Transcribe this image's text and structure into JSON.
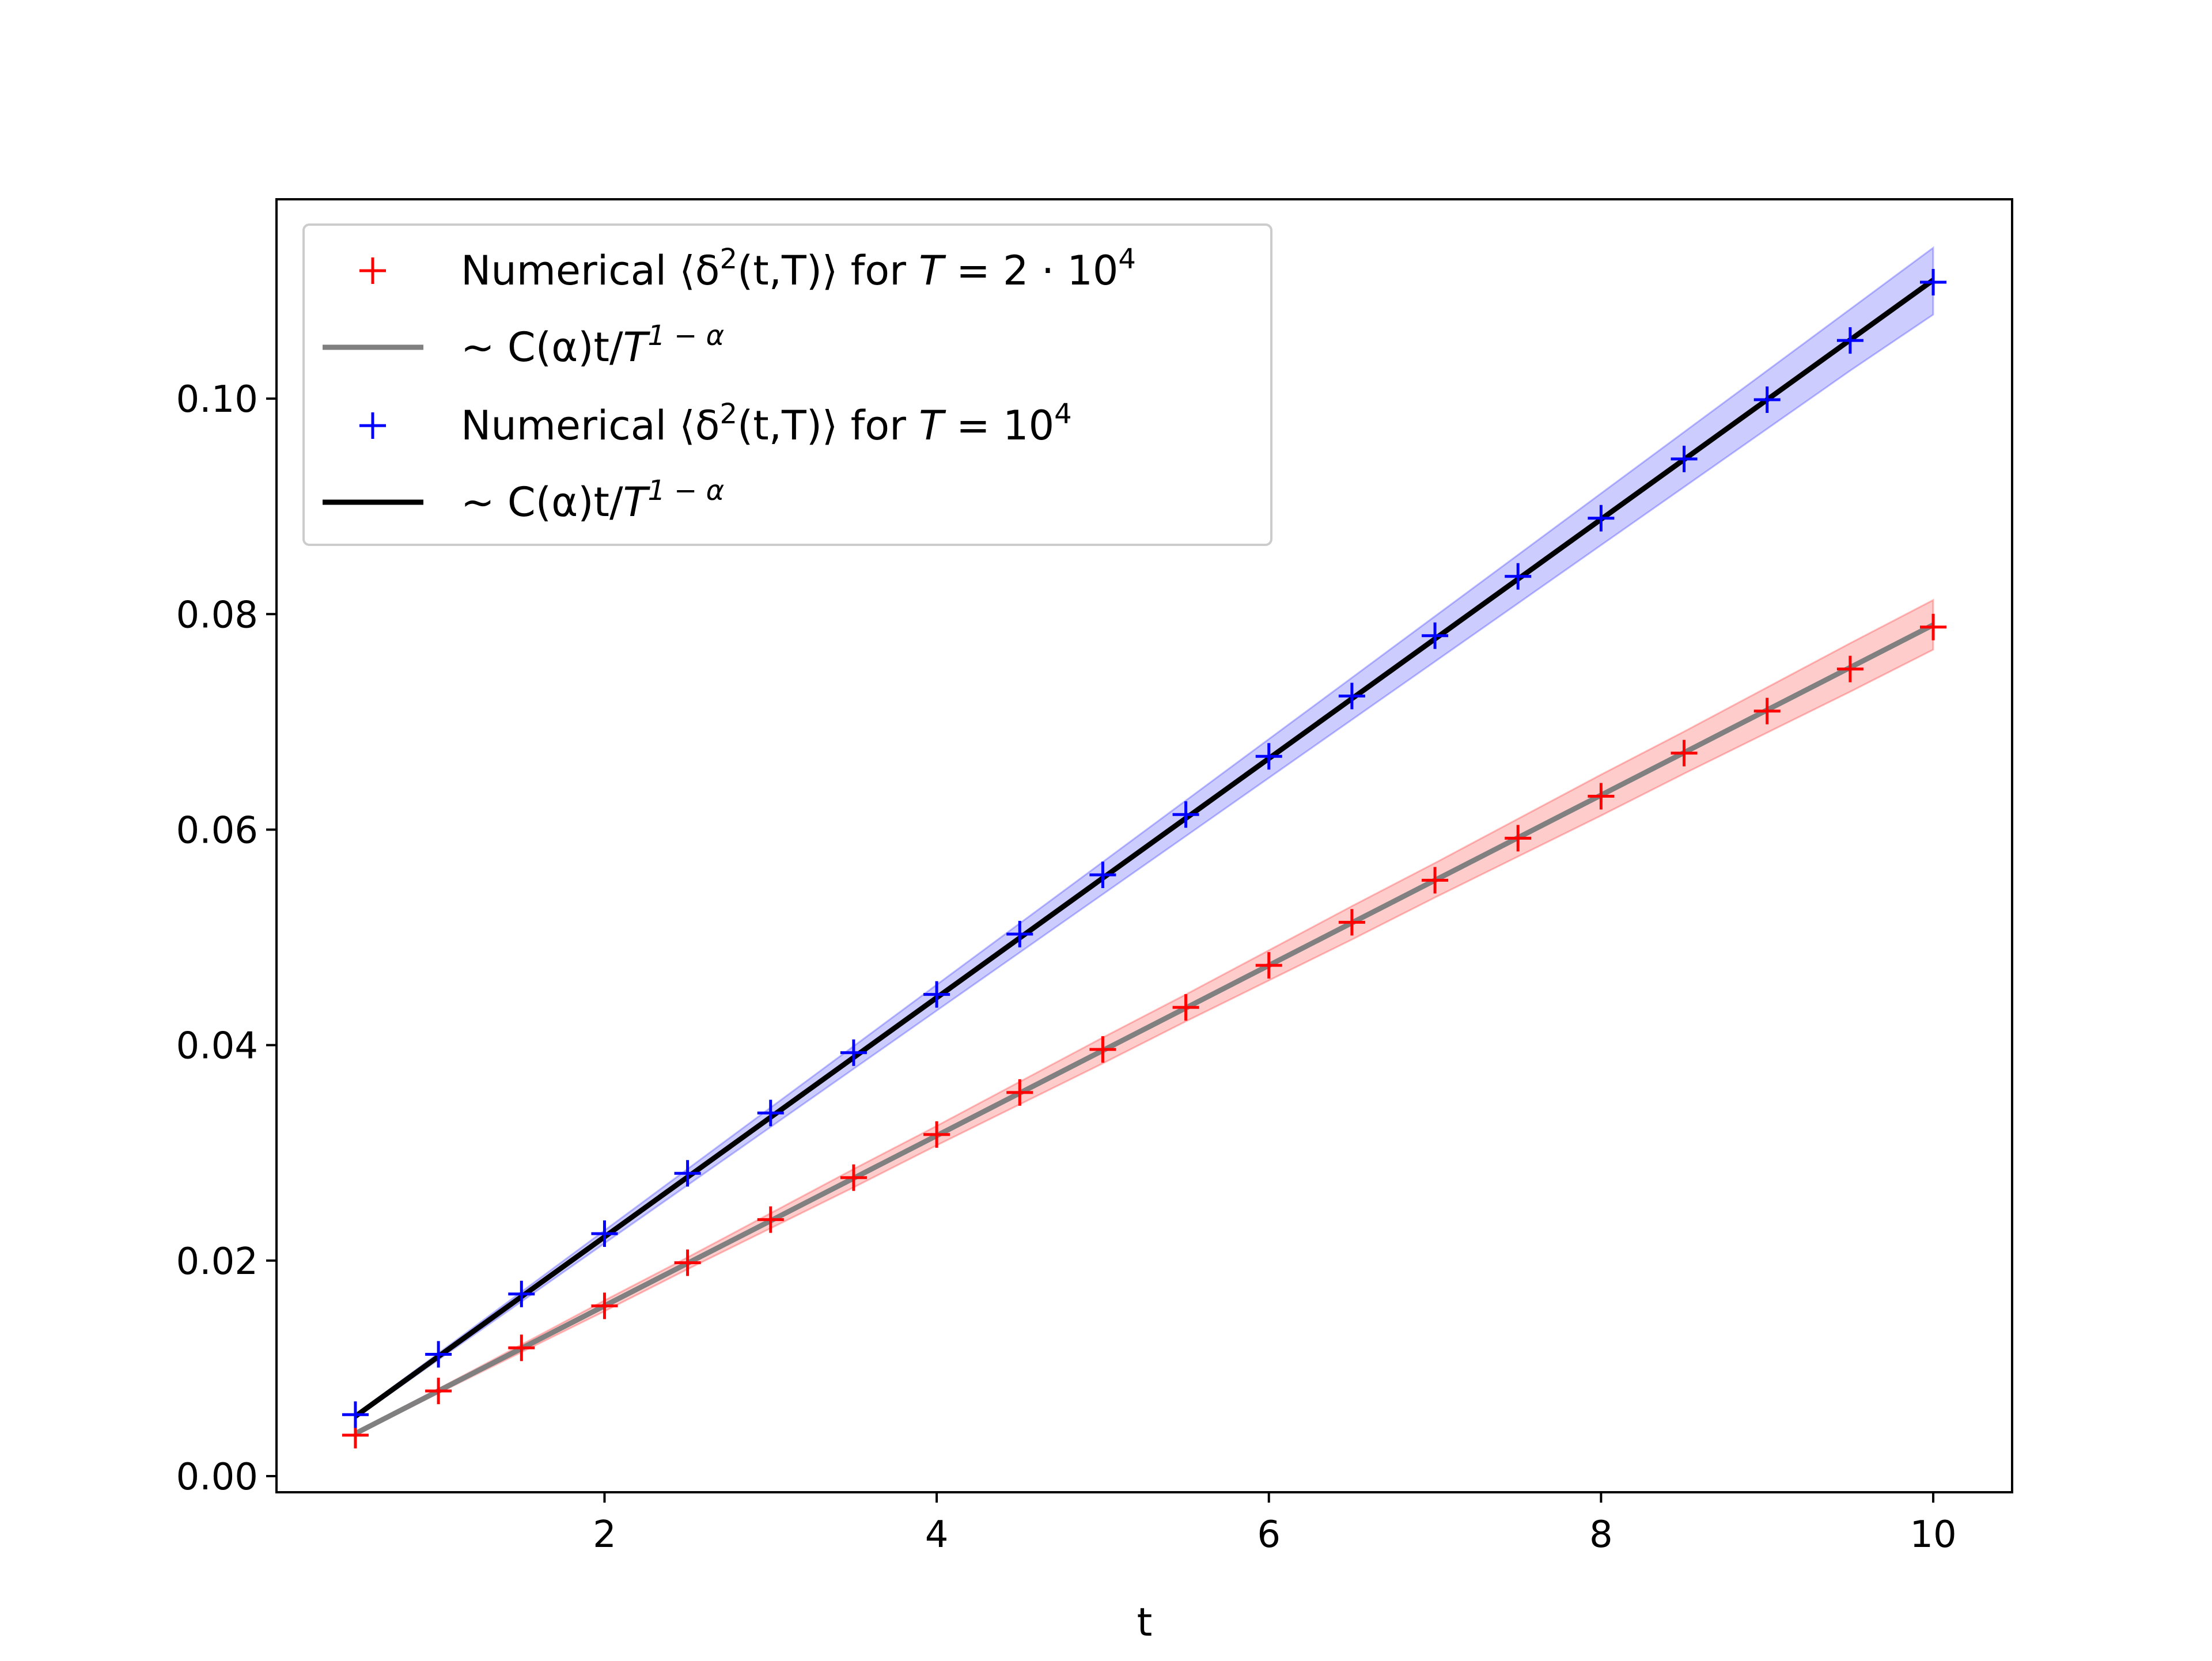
{
  "chart_data": {
    "type": "line",
    "xlabel": "t",
    "ylabel": "",
    "title": "",
    "xlim": [
      0.025,
      10.475
    ],
    "ylim": [
      -0.0015,
      0.1185
    ],
    "xticks": [
      2,
      4,
      6,
      8,
      10
    ],
    "xtick_labels": [
      "2",
      "4",
      "6",
      "8",
      "10"
    ],
    "yticks": [
      0.0,
      0.02,
      0.04,
      0.06,
      0.08,
      0.1
    ],
    "ytick_labels": [
      "0.00",
      "0.02",
      "0.04",
      "0.06",
      "0.08",
      "0.10"
    ],
    "grid": false,
    "legend_position": "top-left",
    "x": [
      0.5,
      1.0,
      1.5,
      2.0,
      2.5,
      3.0,
      3.5,
      4.0,
      4.5,
      5.0,
      5.5,
      6.0,
      6.5,
      7.0,
      7.5,
      8.0,
      8.5,
      9.0,
      9.5,
      10.0
    ],
    "series": [
      {
        "legend": {
          "prefix": "Numerical ⟨δ",
          "sup1": "2",
          "mid": "(t,T)⟩ for ",
          "var": "T",
          "eq": " = 2 · 10",
          "sup2": "4"
        },
        "kind": "markers",
        "marker": "+",
        "color": "#ff0000",
        "values": [
          0.0038,
          0.0079,
          0.0119,
          0.0158,
          0.0198,
          0.0238,
          0.0277,
          0.0317,
          0.0356,
          0.0396,
          0.0435,
          0.0474,
          0.0514,
          0.0553,
          0.0592,
          0.0631,
          0.0671,
          0.071,
          0.0749,
          0.0788
        ]
      },
      {
        "legend": {
          "prefix": "∼ C(α)t/",
          "var": "T",
          "sup1": "1 − α"
        },
        "kind": "line",
        "color": "#808080",
        "band_color": "#ff0000",
        "values": [
          0.00395,
          0.0079,
          0.01185,
          0.0158,
          0.01975,
          0.0237,
          0.02765,
          0.0316,
          0.03555,
          0.0395,
          0.04345,
          0.0474,
          0.05135,
          0.0553,
          0.05925,
          0.0632,
          0.06715,
          0.0711,
          0.07505,
          0.079
        ],
        "band_lower": [
          0.0038,
          0.0077,
          0.0115,
          0.0153,
          0.0192,
          0.023,
          0.0268,
          0.0307,
          0.0345,
          0.0383,
          0.0422,
          0.046,
          0.0498,
          0.0537,
          0.0575,
          0.0613,
          0.0652,
          0.069,
          0.0728,
          0.0767
        ],
        "band_upper": [
          0.0041,
          0.0081,
          0.0122,
          0.0163,
          0.0203,
          0.0244,
          0.0285,
          0.0325,
          0.0366,
          0.0407,
          0.0447,
          0.0488,
          0.0529,
          0.0569,
          0.061,
          0.0651,
          0.0691,
          0.0732,
          0.0773,
          0.0813
        ]
      },
      {
        "legend": {
          "prefix": "Numerical ⟨δ",
          "sup1": "2",
          "mid": "(t,T)⟩ for ",
          "var": "T",
          "eq": " = 10",
          "sup2": "4"
        },
        "kind": "markers",
        "marker": "+",
        "color": "#0000ff",
        "values": [
          0.0057,
          0.0113,
          0.0169,
          0.0225,
          0.0281,
          0.0337,
          0.0393,
          0.0447,
          0.0503,
          0.0558,
          0.0614,
          0.0668,
          0.0724,
          0.078,
          0.0835,
          0.0889,
          0.0944,
          0.0999,
          0.1054,
          0.1108
        ]
      },
      {
        "legend": {
          "prefix": "∼ C(α)t/",
          "var": "T",
          "sup1": "1 − α"
        },
        "kind": "line",
        "color": "#000000",
        "band_color": "#0000ff",
        "values": [
          0.00555,
          0.0111,
          0.01665,
          0.0222,
          0.02775,
          0.0333,
          0.03885,
          0.0444,
          0.04995,
          0.0555,
          0.06105,
          0.0666,
          0.07215,
          0.0777,
          0.08325,
          0.0888,
          0.09435,
          0.0999,
          0.10545,
          0.111
        ],
        "band_lower": [
          0.0054,
          0.0108,
          0.0162,
          0.0216,
          0.027,
          0.0324,
          0.0378,
          0.0432,
          0.0486,
          0.054,
          0.0594,
          0.0648,
          0.0702,
          0.0756,
          0.081,
          0.0864,
          0.0918,
          0.0972,
          0.1026,
          0.1078
        ],
        "band_upper": [
          0.0057,
          0.0114,
          0.0171,
          0.0228,
          0.0285,
          0.0342,
          0.0399,
          0.0456,
          0.0513,
          0.057,
          0.0627,
          0.0684,
          0.0741,
          0.0798,
          0.0855,
          0.0912,
          0.0969,
          0.1026,
          0.1083,
          0.114
        ]
      }
    ]
  }
}
